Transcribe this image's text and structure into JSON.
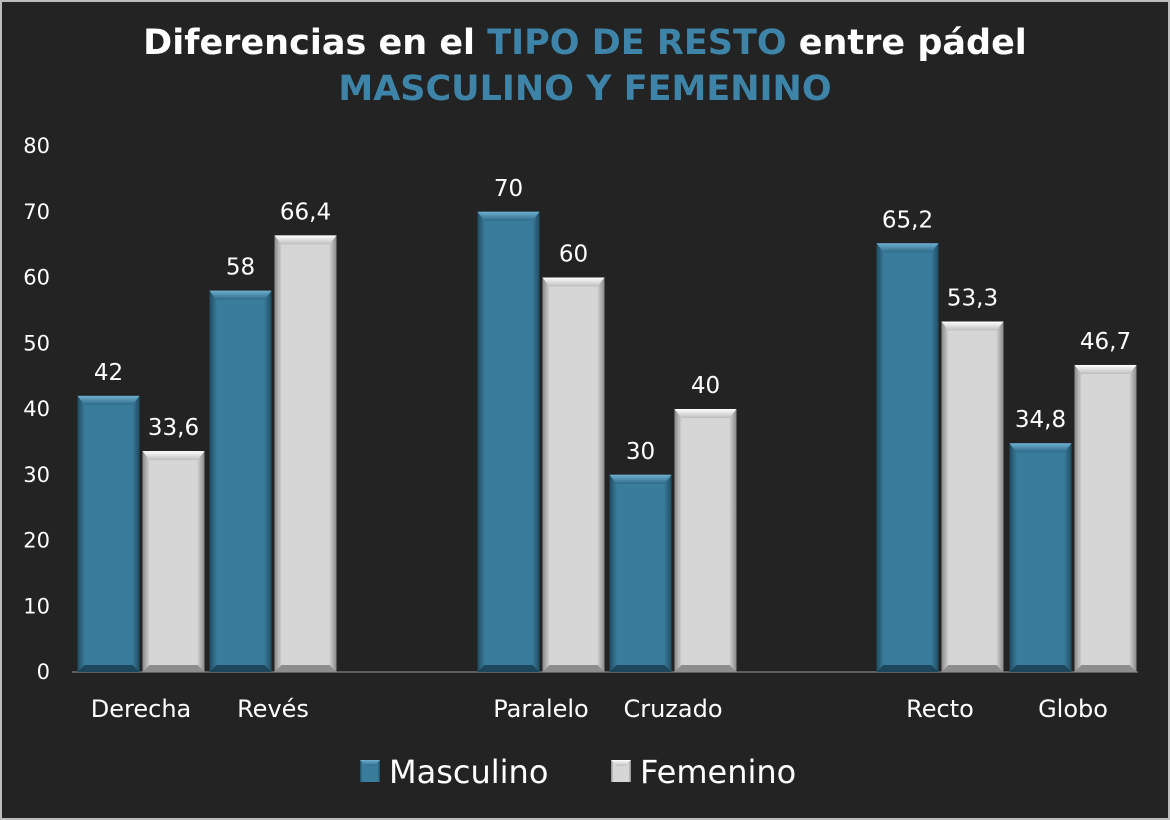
{
  "chart_data": {
    "type": "bar",
    "title_parts": [
      {
        "text": "Diferencias en el ",
        "accent": false
      },
      {
        "text": "TIPO DE RESTO",
        "accent": true
      },
      {
        "text": " entre pádel",
        "accent": false
      },
      {
        "text": "MASCULINO Y FEMENINO",
        "accent": true,
        "newline": true
      }
    ],
    "categories": [
      "Derecha",
      "Revés",
      "Paralelo",
      "Cruzado",
      "Recto",
      "Globo"
    ],
    "groups": [
      [
        0,
        1
      ],
      [
        2,
        3
      ],
      [
        4,
        5
      ]
    ],
    "series": [
      {
        "name": "Masculino",
        "values": [
          42,
          58,
          70,
          30,
          65.2,
          34.8
        ],
        "labels": [
          "42",
          "58",
          "70",
          "30",
          "65,2",
          "34,8"
        ]
      },
      {
        "name": "Femenino",
        "values": [
          33.6,
          66.4,
          60,
          40,
          53.3,
          46.7
        ],
        "labels": [
          "33,6",
          "66,4",
          "60",
          "40",
          "53,3",
          "46,7"
        ]
      }
    ],
    "ylim": [
      0,
      80
    ],
    "yticks": [
      "0",
      "10",
      "20",
      "30",
      "40",
      "50",
      "60",
      "70",
      "80"
    ],
    "grid": false,
    "legend": "bottom",
    "colors": {
      "Masculino": "#3a7c9c",
      "Femenino": "#d4d4d4",
      "accent": "#3d84a8",
      "background": "#232323"
    }
  }
}
